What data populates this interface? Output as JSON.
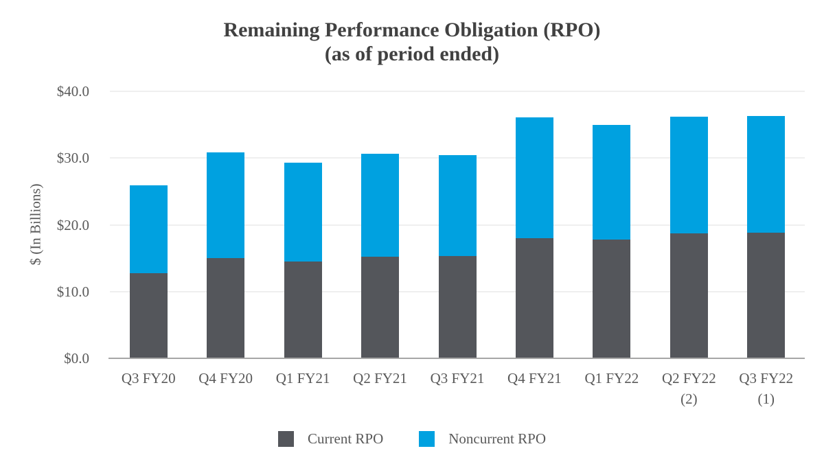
{
  "chart_data": {
    "type": "bar",
    "stacked": true,
    "title": "Remaining Performance Obligation (RPO)",
    "subtitle": "(as of period ended)",
    "ylabel": "$ (In Billions)",
    "xlabel": "",
    "ylim": [
      0,
      40
    ],
    "yticks": [
      0,
      10,
      20,
      30,
      40
    ],
    "ytick_labels": [
      "$0.0",
      "$10.0",
      "$20.0",
      "$30.0",
      "$40.0"
    ],
    "grid": true,
    "legend_position": "bottom",
    "categories": [
      {
        "label": "Q3 FY20",
        "note": ""
      },
      {
        "label": "Q4 FY20",
        "note": ""
      },
      {
        "label": "Q1 FY21",
        "note": ""
      },
      {
        "label": "Q2 FY21",
        "note": ""
      },
      {
        "label": "Q3 FY21",
        "note": ""
      },
      {
        "label": "Q4 FY21",
        "note": ""
      },
      {
        "label": "Q1 FY22",
        "note": ""
      },
      {
        "label": "Q2 FY22",
        "note": "(2)"
      },
      {
        "label": "Q3 FY22",
        "note": "(1)"
      }
    ],
    "series": [
      {
        "name": "Current RPO",
        "color": "#54565B",
        "values": [
          12.8,
          15.0,
          14.5,
          15.2,
          15.3,
          18.0,
          17.8,
          18.7,
          18.8
        ]
      },
      {
        "name": "Noncurrent RPO",
        "color": "#00A1E0",
        "values": [
          13.1,
          15.8,
          14.8,
          15.4,
          15.1,
          18.1,
          17.2,
          17.5,
          17.5
        ]
      }
    ],
    "totals": [
      25.9,
      30.8,
      29.3,
      30.6,
      30.4,
      36.1,
      35.0,
      36.2,
      36.3
    ]
  },
  "style": {
    "title_color": "#414141",
    "axis_text_color": "#595959",
    "gridline_color": "#EFEFEF",
    "axis_line_color": "#A6A6A6",
    "background": "#FFFFFF"
  }
}
